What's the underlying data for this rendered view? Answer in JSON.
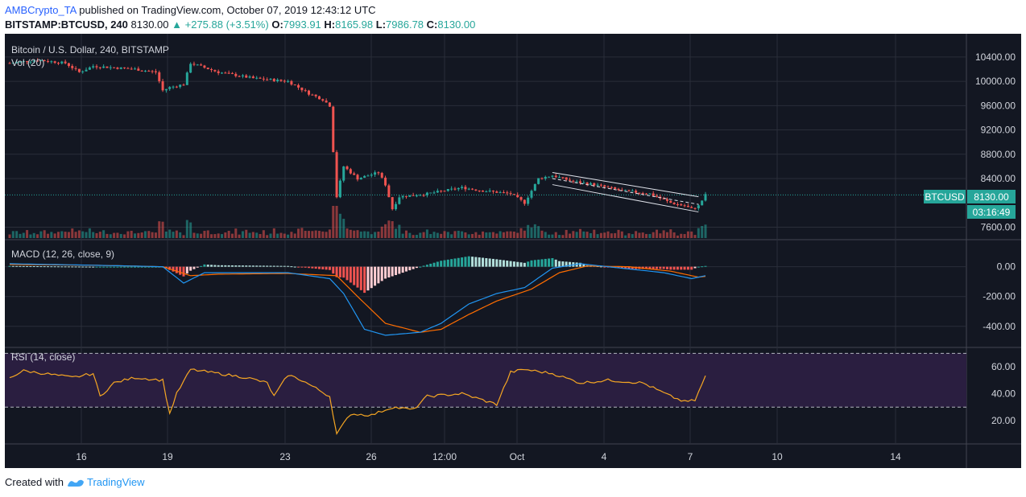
{
  "header": {
    "author": "AMBCrypto_TA",
    "published": " published on TradingView.com, October 07, 2019 12:43:12 UTC",
    "symbol": "BITSTAMP:BTCUSD, 240",
    "last": "8130.00",
    "change": "▲ +275.88 (+3.51%)",
    "o_label": "O:",
    "o_val": "7993.91",
    "h_label": "H:",
    "h_val": "8165.98",
    "l_label": "L:",
    "l_val": "7986.78",
    "c_label": "C:",
    "c_val": "8130.00"
  },
  "footer": {
    "created": "Created with",
    "brand": "TradingView"
  },
  "colors": {
    "up": "#26a69a",
    "down": "#ef5350",
    "pane_bg": "#131722",
    "grid": "#2a2e39",
    "text": "#d1d4dc",
    "macd": "#2196f3",
    "signal": "#ff6d00",
    "rsi": "#f5a623",
    "rsi_band": "#2a1e40"
  },
  "chart_data": [
    {
      "type": "candlestick",
      "title": "Bitcoin / U.S. Dollar, 240, BITSTAMP",
      "legend": "Vol (20)",
      "ylim": [
        7500,
        10650
      ],
      "y_ticks": [
        "10400.00",
        "10000.00",
        "9600.00",
        "9200.00",
        "8800.00",
        "8400.00",
        "7600.00"
      ],
      "last_price": "8130.00",
      "last_label": "BTCUSD",
      "countdown": "03:16:49",
      "x_ticks": [
        "16",
        "19",
        "23",
        "26",
        "12:00",
        "Oct",
        "4",
        "7",
        "10",
        "14"
      ],
      "anchors": [
        [
          0,
          10300
        ],
        [
          8,
          10350
        ],
        [
          16,
          10300
        ],
        [
          20,
          10150
        ],
        [
          24,
          10250
        ],
        [
          36,
          10200
        ],
        [
          42,
          10150
        ],
        [
          44,
          9850
        ],
        [
          46,
          9900
        ],
        [
          50,
          9950
        ],
        [
          52,
          10300
        ],
        [
          60,
          10150
        ],
        [
          70,
          10050
        ],
        [
          80,
          10000
        ],
        [
          86,
          9800
        ],
        [
          90,
          9700
        ],
        [
          92,
          9600
        ],
        [
          94,
          8100
        ],
        [
          96,
          8600
        ],
        [
          100,
          8400
        ],
        [
          106,
          8500
        ],
        [
          108,
          8300
        ],
        [
          110,
          7900
        ],
        [
          112,
          8100
        ],
        [
          120,
          8150
        ],
        [
          130,
          8250
        ],
        [
          136,
          8200
        ],
        [
          144,
          8150
        ],
        [
          148,
          8000
        ],
        [
          150,
          8200
        ],
        [
          152,
          8400
        ],
        [
          156,
          8450
        ],
        [
          162,
          8350
        ],
        [
          168,
          8300
        ],
        [
          176,
          8200
        ],
        [
          184,
          8150
        ],
        [
          190,
          8000
        ],
        [
          194,
          7950
        ],
        [
          196,
          7900
        ],
        [
          198,
          7950
        ],
        [
          200,
          8130
        ]
      ],
      "channel": {
        "upper": [
          [
            156,
            8500
          ],
          [
            198,
            8100
          ]
        ],
        "lower": [
          [
            156,
            8300
          ],
          [
            198,
            7850
          ]
        ]
      }
    },
    {
      "type": "histogram+line",
      "title": "MACD (12, 26, close, 9)",
      "ylim": [
        -520,
        160
      ],
      "y_ticks": [
        "0.00",
        "-200.00",
        "-400.00"
      ],
      "macd_anchors": [
        [
          0,
          20
        ],
        [
          24,
          10
        ],
        [
          44,
          0
        ],
        [
          50,
          -110
        ],
        [
          56,
          -40
        ],
        [
          80,
          -40
        ],
        [
          92,
          -80
        ],
        [
          96,
          -180
        ],
        [
          102,
          -420
        ],
        [
          108,
          -460
        ],
        [
          118,
          -440
        ],
        [
          124,
          -380
        ],
        [
          132,
          -250
        ],
        [
          140,
          -180
        ],
        [
          148,
          -140
        ],
        [
          156,
          -10
        ],
        [
          164,
          20
        ],
        [
          176,
          -10
        ],
        [
          188,
          -40
        ],
        [
          196,
          -80
        ],
        [
          200,
          -60
        ]
      ],
      "signal_anchors": [
        [
          0,
          15
        ],
        [
          24,
          10
        ],
        [
          44,
          0
        ],
        [
          52,
          -60
        ],
        [
          60,
          -50
        ],
        [
          80,
          -45
        ],
        [
          94,
          -60
        ],
        [
          100,
          -200
        ],
        [
          108,
          -380
        ],
        [
          118,
          -440
        ],
        [
          124,
          -420
        ],
        [
          132,
          -320
        ],
        [
          140,
          -230
        ],
        [
          150,
          -150
        ],
        [
          158,
          -40
        ],
        [
          166,
          5
        ],
        [
          178,
          0
        ],
        [
          190,
          -30
        ],
        [
          198,
          -70
        ],
        [
          200,
          -65
        ]
      ]
    },
    {
      "type": "line",
      "title": "RSI (14, close)",
      "ylim": [
        5,
        72
      ],
      "y_ticks": [
        "60.00",
        "40.00",
        "20.00"
      ],
      "bands": [
        70,
        30
      ],
      "anchors": [
        [
          0,
          52
        ],
        [
          4,
          57
        ],
        [
          10,
          55
        ],
        [
          18,
          52
        ],
        [
          24,
          55
        ],
        [
          26,
          38
        ],
        [
          30,
          48
        ],
        [
          36,
          52
        ],
        [
          44,
          50
        ],
        [
          46,
          25
        ],
        [
          48,
          40
        ],
        [
          52,
          58
        ],
        [
          60,
          55
        ],
        [
          68,
          52
        ],
        [
          74,
          48
        ],
        [
          76,
          38
        ],
        [
          80,
          54
        ],
        [
          84,
          50
        ],
        [
          88,
          44
        ],
        [
          92,
          38
        ],
        [
          94,
          10
        ],
        [
          98,
          25
        ],
        [
          104,
          24
        ],
        [
          110,
          30
        ],
        [
          116,
          28
        ],
        [
          120,
          38
        ],
        [
          130,
          40
        ],
        [
          140,
          32
        ],
        [
          144,
          56
        ],
        [
          148,
          58
        ],
        [
          156,
          55
        ],
        [
          164,
          48
        ],
        [
          172,
          50
        ],
        [
          182,
          48
        ],
        [
          190,
          38
        ],
        [
          194,
          34
        ],
        [
          197,
          35
        ],
        [
          200,
          53
        ]
      ]
    }
  ]
}
